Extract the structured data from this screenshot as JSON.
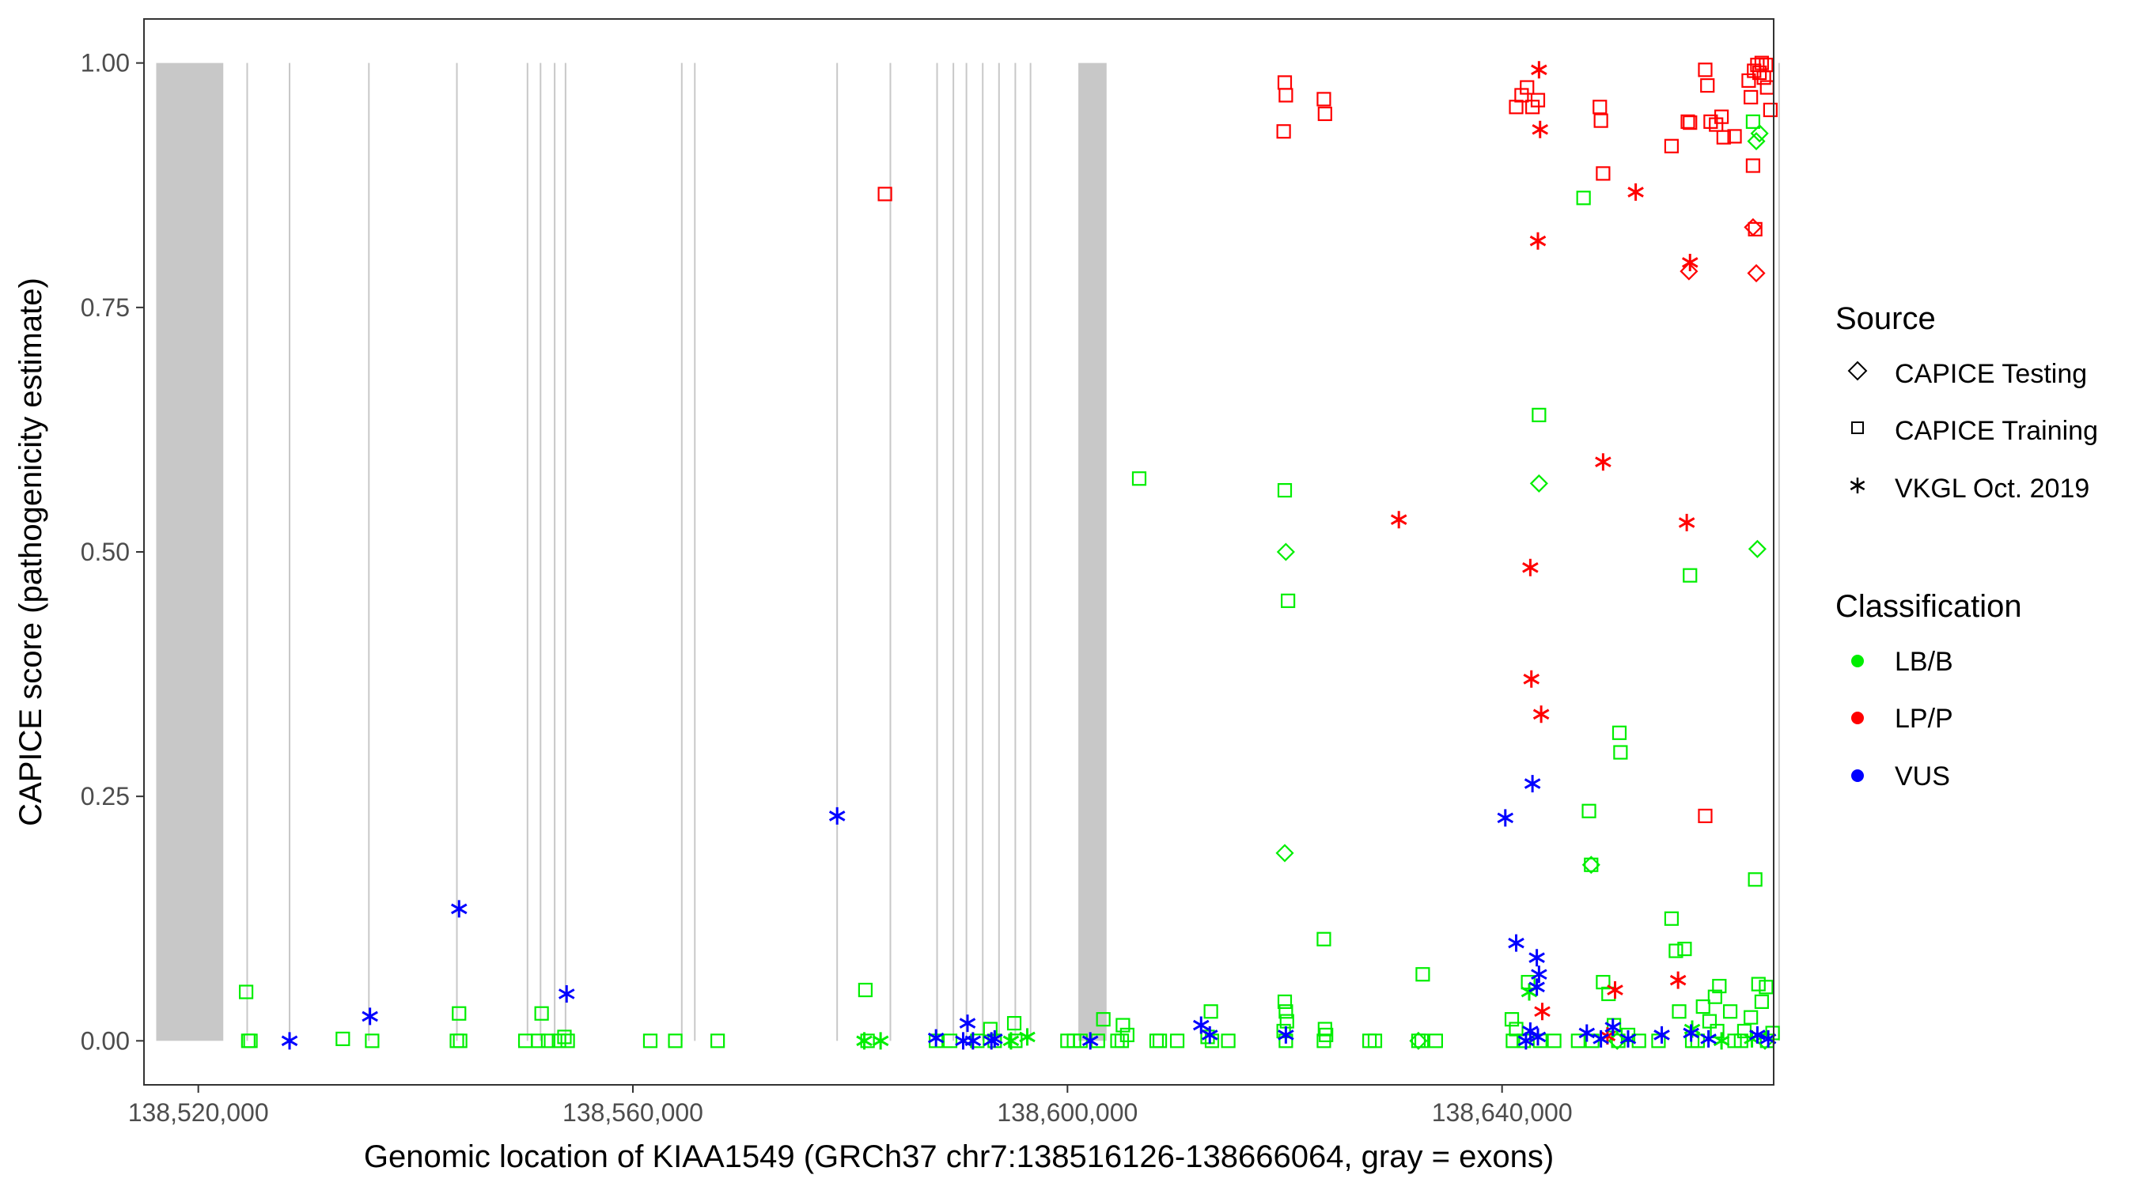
{
  "chart_data": {
    "type": "scatter",
    "title": "",
    "xlabel": "Genomic location of KIAA1549 (GRCh37 chr7:138516126-138666064, gray = exons)",
    "ylabel": "CAPICE score (pathogenicity estimate)",
    "xlim": [
      138515000,
      138665000
    ],
    "ylim": [
      -0.045,
      1.045
    ],
    "x_ticks": [
      138520000,
      138560000,
      138600000,
      138640000
    ],
    "x_tick_labels": [
      "138,520,000",
      "138,560,000",
      "138,600,000",
      "138,640,000"
    ],
    "y_ticks": [
      0,
      0.25,
      0.5,
      0.75,
      1.0
    ],
    "y_tick_labels": [
      "0.00",
      "0.25",
      "0.50",
      "0.75",
      "1.00"
    ],
    "grid": false,
    "exon_bands": [
      [
        138516126,
        138522300
      ],
      [
        138601000,
        138603600
      ]
    ],
    "exon_lines": [
      138524500,
      138528400,
      138535700,
      138543800,
      138550300,
      138551500,
      138552800,
      138553800,
      138564500,
      138565700,
      138578800,
      138583700,
      138588000,
      138589500,
      138590700,
      138592200,
      138593700,
      138595200,
      138596600,
      138665500
    ],
    "exon_color": "#c8c8c8",
    "legends": {
      "source": {
        "title": "Source",
        "items": [
          {
            "label": "CAPICE Testing",
            "shape": "diamond"
          },
          {
            "label": "CAPICE Training",
            "shape": "square"
          },
          {
            "label": "VKGL Oct. 2019",
            "shape": "asterisk"
          }
        ]
      },
      "classification": {
        "title": "Classification",
        "items": [
          {
            "label": "LB/B",
            "color": "#00ee00"
          },
          {
            "label": "LP/P",
            "color": "#ff0000"
          },
          {
            "label": "VUS",
            "color": "#0000ff"
          }
        ]
      }
    },
    "series": [
      {
        "name": "CAPICE Training LB/B",
        "shape": "square",
        "color": "#00ee00",
        "points": [
          [
            138524400,
            0.05
          ],
          [
            138524600,
            0
          ],
          [
            138524800,
            0
          ],
          [
            138533300,
            0.002
          ],
          [
            138536000,
            0
          ],
          [
            138544000,
            0.028
          ],
          [
            138543800,
            0
          ],
          [
            138544100,
            0
          ],
          [
            138550100,
            0
          ],
          [
            138551600,
            0.028
          ],
          [
            138551300,
            0
          ],
          [
            138552200,
            0
          ],
          [
            138553200,
            0
          ],
          [
            138553700,
            0.004
          ],
          [
            138554000,
            0
          ],
          [
            138561600,
            0
          ],
          [
            138563900,
            0
          ],
          [
            138567800,
            0
          ],
          [
            138581400,
            0.052
          ],
          [
            138581600,
            0
          ],
          [
            138587900,
            0
          ],
          [
            138589200,
            0
          ],
          [
            138591700,
            0
          ],
          [
            138592900,
            0.012
          ],
          [
            138593300,
            0
          ],
          [
            138595100,
            0.018
          ],
          [
            138595200,
            0
          ],
          [
            138600000,
            0
          ],
          [
            138600600,
            0
          ],
          [
            138601200,
            0
          ],
          [
            138602800,
            0
          ],
          [
            138603300,
            0.022
          ],
          [
            138604600,
            0
          ],
          [
            138605100,
            0.016
          ],
          [
            138605500,
            0.006
          ],
          [
            138605000,
            0
          ],
          [
            138608200,
            0
          ],
          [
            138608500,
            0
          ],
          [
            138610100,
            0
          ],
          [
            138613200,
            0.03
          ],
          [
            138612900,
            0.004
          ],
          [
            138613300,
            0
          ],
          [
            138614800,
            0
          ],
          [
            138606600,
            0.575
          ],
          [
            138620000,
            0.563
          ],
          [
            138620300,
            0.45
          ],
          [
            138620000,
            0.04
          ],
          [
            138620100,
            0.03
          ],
          [
            138620200,
            0.02
          ],
          [
            138619900,
            0.01
          ],
          [
            138620100,
            0
          ],
          [
            138623600,
            0.104
          ],
          [
            138623700,
            0.012
          ],
          [
            138623800,
            0.006
          ],
          [
            138623600,
            0
          ],
          [
            138627800,
            0
          ],
          [
            138628300,
            0
          ],
          [
            138632700,
            0.068
          ],
          [
            138632300,
            0
          ],
          [
            138632600,
            0
          ],
          [
            138633900,
            0
          ],
          [
            138640900,
            0.022
          ],
          [
            138641300,
            0.012
          ],
          [
            138642400,
            0.06
          ],
          [
            138643400,
            0.64
          ],
          [
            138641000,
            0
          ],
          [
            138642000,
            0
          ],
          [
            138643500,
            0
          ],
          [
            138644800,
            0
          ],
          [
            138647000,
            0
          ],
          [
            138647500,
            0.862
          ],
          [
            138648000,
            0.235
          ],
          [
            138648200,
            0.18
          ],
          [
            138648300,
            0
          ],
          [
            138649300,
            0.06
          ],
          [
            138649800,
            0.048
          ],
          [
            138650300,
            0.016
          ],
          [
            138650800,
            0.315
          ],
          [
            138650900,
            0.295
          ],
          [
            138650700,
            0
          ],
          [
            138651600,
            0.006
          ],
          [
            138652600,
            0
          ],
          [
            138654400,
            0
          ],
          [
            138655600,
            0.125
          ],
          [
            138656000,
            0.092
          ],
          [
            138656300,
            0.03
          ],
          [
            138656800,
            0.094
          ],
          [
            138657300,
            0.476
          ],
          [
            138657500,
            0
          ],
          [
            138658500,
            0.035
          ],
          [
            138659100,
            0.02
          ],
          [
            138659600,
            0.045
          ],
          [
            138660000,
            0.056
          ],
          [
            138659800,
            0.01
          ],
          [
            138661000,
            0.03
          ],
          [
            138661400,
            0
          ],
          [
            138662300,
            0.01
          ],
          [
            138662900,
            0.024
          ],
          [
            138663100,
            0.94
          ],
          [
            138663300,
            0.165
          ],
          [
            138663600,
            0.058
          ],
          [
            138663900,
            0.04
          ],
          [
            138664300,
            0.055
          ],
          [
            138664400,
            0
          ],
          [
            138664900,
            0.008
          ],
          [
            138662000,
            0
          ],
          [
            138658000,
            0
          ]
        ]
      },
      {
        "name": "CAPICE Training LP/P",
        "shape": "square",
        "color": "#ff0000",
        "points": [
          [
            138583200,
            0.866
          ],
          [
            138620000,
            0.98
          ],
          [
            138620100,
            0.967
          ],
          [
            138619900,
            0.93
          ],
          [
            138623600,
            0.963
          ],
          [
            138623700,
            0.948
          ],
          [
            138641300,
            0.955
          ],
          [
            138641800,
            0.967
          ],
          [
            138642300,
            0.975
          ],
          [
            138642800,
            0.955
          ],
          [
            138643300,
            0.962
          ],
          [
            138649000,
            0.955
          ],
          [
            138649100,
            0.941
          ],
          [
            138649300,
            0.887
          ],
          [
            138655600,
            0.915
          ],
          [
            138657100,
            0.94
          ],
          [
            138657300,
            0.939
          ],
          [
            138658700,
            0.993
          ],
          [
            138658900,
            0.977
          ],
          [
            138659200,
            0.94
          ],
          [
            138659700,
            0.937
          ],
          [
            138660200,
            0.945
          ],
          [
            138660400,
            0.924
          ],
          [
            138661400,
            0.925
          ],
          [
            138662700,
            0.982
          ],
          [
            138662900,
            0.965
          ],
          [
            138663200,
            0.992
          ],
          [
            138663500,
            0.998
          ],
          [
            138663700,
            0.99
          ],
          [
            138663900,
            1.0
          ],
          [
            138664100,
            0.985
          ],
          [
            138664300,
            0.998
          ],
          [
            138664400,
            0.975
          ],
          [
            138664700,
            0.952
          ],
          [
            138663100,
            0.895
          ],
          [
            138663300,
            0.83
          ],
          [
            138658700,
            0.23
          ]
        ]
      },
      {
        "name": "CAPICE Testing LB/B",
        "shape": "diamond",
        "color": "#00ee00",
        "points": [
          [
            138620100,
            0.5
          ],
          [
            138620000,
            0.192
          ],
          [
            138643400,
            0.57
          ],
          [
            138648200,
            0.18
          ],
          [
            138663400,
            0.92
          ],
          [
            138663700,
            0.928
          ],
          [
            138663500,
            0.503
          ],
          [
            138632300,
            0
          ],
          [
            138650600,
            0
          ],
          [
            138664200,
            0
          ]
        ]
      },
      {
        "name": "CAPICE Testing LP/P",
        "shape": "diamond",
        "color": "#ff0000",
        "points": [
          [
            138657200,
            0.787
          ],
          [
            138663100,
            0.832
          ],
          [
            138663400,
            0.785
          ]
        ]
      },
      {
        "name": "VKGL Oct. 2019 LB/B",
        "shape": "asterisk",
        "color": "#00ee00",
        "points": [
          [
            138581300,
            0
          ],
          [
            138582800,
            0
          ],
          [
            138594800,
            0
          ],
          [
            138596300,
            0.004
          ],
          [
            138642500,
            0.05
          ],
          [
            138657500,
            0.012
          ],
          [
            138660200,
            0
          ],
          [
            138663000,
            0.002
          ]
        ]
      },
      {
        "name": "VKGL Oct. 2019 LP/P",
        "shape": "asterisk",
        "color": "#ff0000",
        "points": [
          [
            138643400,
            0.993
          ],
          [
            138643500,
            0.932
          ],
          [
            138643300,
            0.818
          ],
          [
            138652300,
            0.868
          ],
          [
            138630500,
            0.533
          ],
          [
            138642600,
            0.484
          ],
          [
            138649300,
            0.592
          ],
          [
            138657300,
            0.796
          ],
          [
            138657000,
            0.53
          ],
          [
            138642700,
            0.37
          ],
          [
            138643600,
            0.334
          ],
          [
            138656200,
            0.062
          ],
          [
            138650400,
            0.052
          ],
          [
            138643700,
            0.03
          ],
          [
            138649700,
            0.005
          ]
        ]
      },
      {
        "name": "VKGL Oct. 2019 VUS",
        "shape": "asterisk",
        "color": "#0000ff",
        "points": [
          [
            138528400,
            0
          ],
          [
            138535800,
            0.025
          ],
          [
            138544000,
            0.135
          ],
          [
            138553900,
            0.048
          ],
          [
            138578800,
            0.23
          ],
          [
            138587900,
            0.003
          ],
          [
            138590800,
            0.018
          ],
          [
            138590400,
            0
          ],
          [
            138591300,
            0
          ],
          [
            138593000,
            0
          ],
          [
            138593300,
            0.002
          ],
          [
            138602100,
            0
          ],
          [
            138612300,
            0.016
          ],
          [
            138613100,
            0.006
          ],
          [
            138620100,
            0.006
          ],
          [
            138640300,
            0.228
          ],
          [
            138641300,
            0.1
          ],
          [
            138642800,
            0.263
          ],
          [
            138643200,
            0.085
          ],
          [
            138643400,
            0.068
          ],
          [
            138643200,
            0.055
          ],
          [
            138642600,
            0.01
          ],
          [
            138643300,
            0.004
          ],
          [
            138642200,
            0
          ],
          [
            138647800,
            0.008
          ],
          [
            138649100,
            0.002
          ],
          [
            138650200,
            0.014
          ],
          [
            138651600,
            0.002
          ],
          [
            138654700,
            0.006
          ],
          [
            138657400,
            0.008
          ],
          [
            138659000,
            0.002
          ],
          [
            138663500,
            0.006
          ],
          [
            138664500,
            0.002
          ]
        ]
      }
    ]
  }
}
